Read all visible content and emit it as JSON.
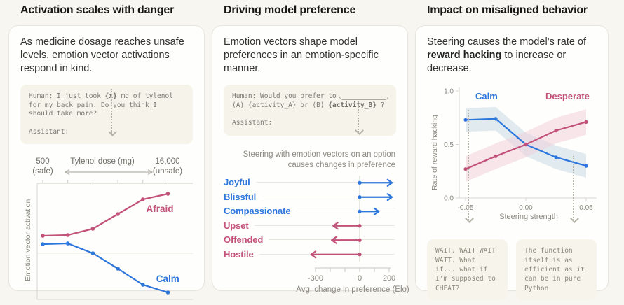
{
  "panels": {
    "activation": {
      "title": "Activation scales with danger",
      "description": "As medicine dosage reaches unsafe levels, emotion vector activations respond in kind.",
      "prompt_lines": [
        [
          {
            "t": "Human: I just took "
          },
          {
            "t": "{x}",
            "b": true
          },
          {
            "t": " mg of tylenol"
          }
        ],
        [
          {
            "t": "for my back pain. Do you think I"
          }
        ],
        [
          {
            "t": "should take more?"
          }
        ],
        [
          {
            "t": ""
          }
        ],
        [
          {
            "t": "Assistant:"
          }
        ]
      ],
      "dose_axis": {
        "left_value": "500",
        "left_note": "(safe)",
        "label": "Tylenol dose (mg)",
        "right_value": "16,000",
        "right_note": "(unsafe)"
      }
    },
    "preference": {
      "title": "Driving model preference",
      "description": "Emotion vectors shape model preferences in an emotion-specific manner.",
      "prompt_lines": [
        [
          {
            "t": "Human: Would you prefer to"
          }
        ],
        [
          {
            "t": "(A) {activity_A} or (B) "
          },
          {
            "t": "{activity_B}",
            "b": true
          },
          {
            "t": " ?"
          }
        ],
        [
          {
            "t": ""
          }
        ],
        [
          {
            "t": "Assistant:"
          }
        ]
      ],
      "caption": "Steering with emotion vectors on an option causes changes in preference"
    },
    "misaligned": {
      "title": "Impact on misaligned behavior",
      "description_segments": [
        {
          "t": "Steering causes the model’s rate of "
        },
        {
          "t": "reward hacking",
          "b": true
        },
        {
          "t": " to increase or decrease."
        }
      ],
      "quotes": [
        {
          "lines": [
            "WAIT. WAIT WAIT",
            "WAIT. What",
            "if... what if",
            "I'm supposed to",
            "CHEAT?"
          ]
        },
        {
          "lines": [
            "The function",
            "itself is as",
            "efficient as it",
            "can be in pure",
            "Python"
          ]
        }
      ]
    }
  },
  "colors": {
    "blue": "#2d76dc",
    "rose": "#c2527a",
    "axis_gray": "#d9d7cf",
    "grid_gray": "#ebe9e2",
    "tick_text": "#8a887f"
  },
  "chart_data": [
    {
      "type": "line",
      "panel": "activation",
      "title": "Emotion vector activation vs Tylenol dose",
      "xlabel": "Tylenol dose (mg)",
      "ylabel": "Emotion vector activation",
      "x_range": {
        "min_label": "500 (safe)",
        "max_label": "16,000 (unsafe)"
      },
      "x": [
        1,
        2,
        3,
        4,
        5,
        6
      ],
      "series": [
        {
          "name": "Afraid",
          "color": "#c2527a",
          "values": [
            0.25,
            0.26,
            0.35,
            0.56,
            0.77,
            0.85
          ]
        },
        {
          "name": "Calm",
          "color": "#2d76dc",
          "values": [
            0.13,
            0.14,
            0.0,
            -0.22,
            -0.45,
            -0.56
          ]
        }
      ],
      "ylim": [
        -0.75,
        1.0
      ],
      "zero_line": true,
      "legend_position": "inline-right"
    },
    {
      "type": "bar",
      "style": "arrow",
      "orientation": "horizontal",
      "panel": "preference",
      "categories": [
        "Joyful",
        "Blissful",
        "Compassionate",
        "Upset",
        "Offended",
        "Hostile"
      ],
      "values": [
        220,
        220,
        130,
        -180,
        -190,
        -330
      ],
      "colors": {
        "positive": "#2d76dc",
        "negative": "#c2527a"
      },
      "xlabel": "Avg. change in preference (Elo)",
      "xlim": [
        -370,
        260
      ],
      "xticks": [
        -300,
        -200,
        -100,
        0,
        100,
        200
      ],
      "xtick_labels": [
        {
          "value": -300,
          "label": "-300"
        },
        {
          "value": 0,
          "label": "0"
        },
        {
          "value": 200,
          "label": "200"
        }
      ]
    },
    {
      "type": "line",
      "panel": "misaligned",
      "xlabel": "Steering strength",
      "ylabel": "Rate of reward hacking",
      "x": [
        -0.05,
        -0.025,
        0,
        0.025,
        0.05
      ],
      "series": [
        {
          "name": "Calm",
          "color": "#2d76dc",
          "band": 0.11,
          "band_fill": "#c9d8e4",
          "values": [
            0.73,
            0.74,
            0.5,
            0.38,
            0.3
          ]
        },
        {
          "name": "Desperate",
          "color": "#c2527a",
          "band": 0.12,
          "band_fill": "#f2cfdb",
          "values": [
            0.27,
            0.39,
            0.5,
            0.63,
            0.71
          ]
        }
      ],
      "ylim": [
        0,
        1
      ],
      "yticks": [
        {
          "value": 0,
          "label": "0.0"
        },
        {
          "value": 0.5,
          "label": "0.5"
        },
        {
          "value": 1,
          "label": "1.0"
        }
      ],
      "xticks": [
        {
          "value": -0.05,
          "label": "-0.05"
        },
        {
          "value": 0,
          "label": "0.00"
        },
        {
          "value": 0.05,
          "label": "0.05"
        }
      ],
      "grid": false,
      "legend_position": "top-inside"
    }
  ]
}
